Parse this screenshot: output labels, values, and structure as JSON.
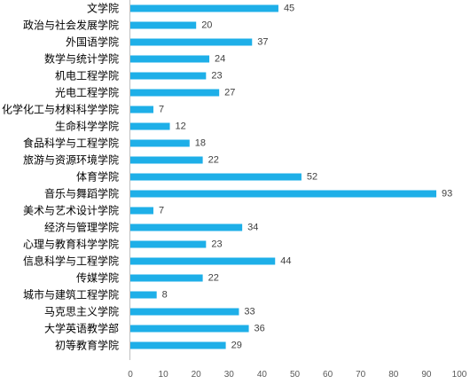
{
  "chart_data": {
    "type": "bar",
    "orientation": "horizontal",
    "categories": [
      "文学院",
      "政治与社会发展学院",
      "外国语学院",
      "数学与统计学院",
      "机电工程学院",
      "光电工程学院",
      "化学化工与材料科学学院",
      "生命科学学院",
      "食品科学与工程学院",
      "旅游与资源环境学院",
      "体育学院",
      "音乐与舞蹈学院",
      "美术与艺术设计学院",
      "经济与管理学院",
      "心理与教育科学学院",
      "信息科学与工程学院",
      "传媒学院",
      "城市与建筑工程学院",
      "马克思主义学院",
      "大学英语教学部",
      "初等教育学院"
    ],
    "values": [
      45,
      20,
      37,
      24,
      23,
      27,
      7,
      12,
      18,
      22,
      52,
      93,
      7,
      34,
      23,
      44,
      22,
      8,
      33,
      36,
      29
    ],
    "xlim": [
      0,
      100
    ],
    "xticks": [
      0,
      10,
      20,
      30,
      40,
      50,
      60,
      70,
      80,
      90,
      100
    ],
    "grid": false,
    "data_labels": true,
    "colors": {
      "bar": "#1EAFE8",
      "axis": "#BFBFBF"
    }
  }
}
